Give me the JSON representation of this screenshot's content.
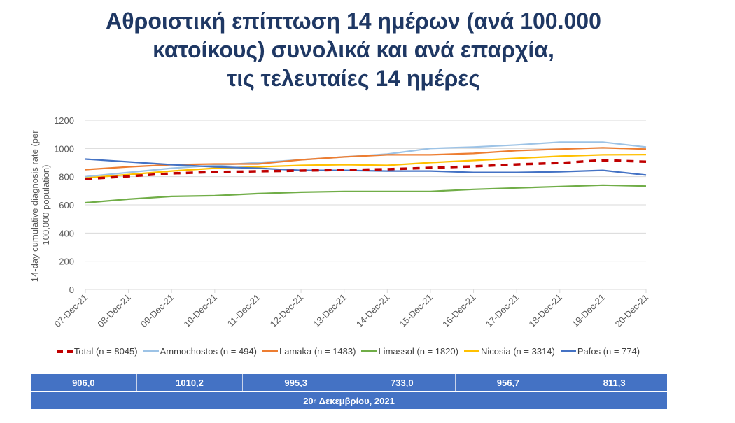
{
  "title_lines": [
    "Αθροιστική επίπτωση 14 ημέρων (ανά 100.000",
    "κατοίκους) συνολικά και ανά επαρχία,",
    "τις τελευταίες 14 ημέρες"
  ],
  "chart_data": {
    "type": "line",
    "title": "Αθροιστική επίπτωση 14 ημέρων (ανά 100.000 κατοίκους) συνολικά και ανά επαρχία, τις τελευταίες 14 ημέρες",
    "ylabel": "14-day cumulative diagnosis rate (per 100,000 population)",
    "ylabel_lines": [
      "14-day cumulative diagnosis rate (per",
      "100,000 population)"
    ],
    "xlabel": "",
    "ylim": [
      0,
      1200
    ],
    "yticks": [
      0,
      200,
      400,
      600,
      800,
      1000,
      1200
    ],
    "grid": true,
    "legend": "bottom",
    "x": [
      "07-Dec-21",
      "08-Dec-21",
      "09-Dec-21",
      "10-Dec-21",
      "11-Dec-21",
      "12-Dec-21",
      "13-Dec-21",
      "14-Dec-21",
      "15-Dec-21",
      "16-Dec-21",
      "17-Dec-21",
      "18-Dec-21",
      "19-Dec-21",
      "20-Dec-21"
    ],
    "series": [
      {
        "name": "Total (n = 8045)",
        "color": "#c00000",
        "dashed": true,
        "values": [
          783,
          803,
          823,
          833,
          838,
          843,
          848,
          853,
          863,
          873,
          887,
          897,
          917,
          906
        ]
      },
      {
        "name": "Ammochostos (n = 494)",
        "color": "#9dc3e6",
        "values": [
          800,
          830,
          860,
          880,
          900,
          920,
          940,
          960,
          1000,
          1010,
          1025,
          1045,
          1045,
          1010.2
        ]
      },
      {
        "name": "Lamaka (n = 1483)",
        "color": "#ed7d31",
        "values": [
          850,
          870,
          885,
          890,
          890,
          920,
          940,
          955,
          955,
          965,
          985,
          995,
          1005,
          995.3
        ]
      },
      {
        "name": "Limassol (n = 1820)",
        "color": "#70ad47",
        "values": [
          615,
          640,
          660,
          665,
          680,
          690,
          695,
          695,
          695,
          710,
          720,
          730,
          740,
          733
        ]
      },
      {
        "name": "Nicosia (n = 3314)",
        "color": "#ffc000",
        "values": [
          790,
          815,
          840,
          860,
          870,
          880,
          885,
          880,
          900,
          915,
          930,
          945,
          955,
          956.7
        ]
      },
      {
        "name": "Pafos (n = 774)",
        "color": "#4472c4",
        "values": [
          925,
          905,
          885,
          870,
          860,
          845,
          845,
          840,
          840,
          830,
          830,
          835,
          845,
          811.3
        ]
      }
    ]
  },
  "table": {
    "values": [
      "906,0",
      "1010,2",
      "995,3",
      "733,0",
      "956,7",
      "811,3"
    ],
    "date_prefix": "20",
    "date_sup": "η",
    "date_suffix": " Δεκεμβρίου, 2021"
  },
  "colors": {
    "title": "#1f3864",
    "table_bg": "#4472c4"
  }
}
